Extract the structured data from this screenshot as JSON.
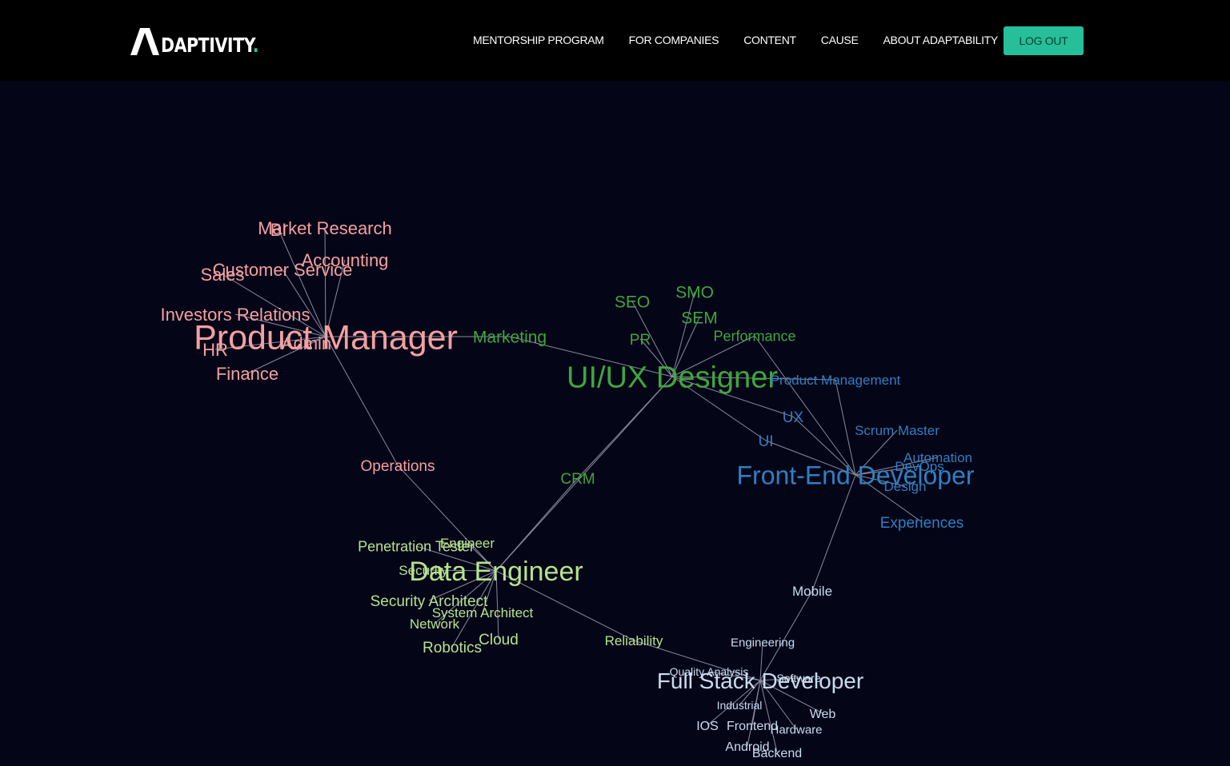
{
  "brand": {
    "logo_text": "DAPTIVITY",
    "logo_dot": "."
  },
  "nav": {
    "items": [
      "MENTORSHIP PROGRAM",
      "FOR COMPANIES",
      "CONTENT",
      "CAUSE",
      "ABOUT ADAPTABILITY"
    ],
    "logout_label": "LOG OUT"
  },
  "colors": {
    "background": "#050518",
    "header": "#000000",
    "accent": "#25bf99",
    "edge": "#8a8a9e",
    "pm": "#f4a0a0",
    "uiux": "#3fa63c",
    "frontend": "#2f7fc0",
    "data": "#b6e38c",
    "fullstack": "#c9dcef"
  },
  "graph": {
    "hubs": [
      {
        "id": "pm",
        "label": "Product Manager",
        "group": "pm"
      },
      {
        "id": "uiux",
        "label": "UI/UX Designer",
        "group": "uiux"
      },
      {
        "id": "fe",
        "label": "Front-End Developer",
        "group": "frontend"
      },
      {
        "id": "de",
        "label": "Data Engineer",
        "group": "data"
      },
      {
        "id": "fs",
        "label": "Full Stack Developer",
        "group": "fullstack"
      }
    ],
    "skills": [
      {
        "id": "market_research",
        "label": "Market Research",
        "group": "pm",
        "hubs": [
          "pm"
        ]
      },
      {
        "id": "bi",
        "label": "BI",
        "group": "pm",
        "hubs": [
          "pm"
        ]
      },
      {
        "id": "accounting",
        "label": "Accounting",
        "group": "pm",
        "hubs": [
          "pm"
        ]
      },
      {
        "id": "customer_service",
        "label": "Customer Service",
        "group": "pm",
        "hubs": [
          "pm"
        ]
      },
      {
        "id": "sales",
        "label": "Sales",
        "group": "pm",
        "hubs": [
          "pm"
        ]
      },
      {
        "id": "investors",
        "label": "Investors Relations",
        "group": "pm",
        "hubs": [
          "pm"
        ]
      },
      {
        "id": "hr",
        "label": "HR",
        "group": "pm",
        "hubs": [
          "pm"
        ]
      },
      {
        "id": "admin",
        "label": "Admin",
        "group": "pm",
        "hubs": [
          "pm"
        ]
      },
      {
        "id": "finance",
        "label": "Finance",
        "group": "pm",
        "hubs": [
          "pm"
        ]
      },
      {
        "id": "operations",
        "label": "Operations",
        "group": "pm",
        "hubs": [
          "pm",
          "de"
        ]
      },
      {
        "id": "seo",
        "label": "SEO",
        "group": "uiux",
        "hubs": [
          "uiux"
        ]
      },
      {
        "id": "smo",
        "label": "SMO",
        "group": "uiux",
        "hubs": [
          "uiux"
        ]
      },
      {
        "id": "sem",
        "label": "SEM",
        "group": "uiux",
        "hubs": [
          "uiux"
        ]
      },
      {
        "id": "pr",
        "label": "PR",
        "group": "uiux",
        "hubs": [
          "uiux"
        ]
      },
      {
        "id": "performance",
        "label": "Performance",
        "group": "uiux",
        "hubs": [
          "uiux",
          "fe"
        ]
      },
      {
        "id": "marketing",
        "label": "Marketing",
        "group": "uiux",
        "hubs": [
          "uiux",
          "pm"
        ]
      },
      {
        "id": "crm",
        "label": "CRM",
        "group": "uiux",
        "hubs": [
          "uiux",
          "de"
        ]
      },
      {
        "id": "product_mgmt",
        "label": "Product Management",
        "group": "frontend",
        "hubs": [
          "fe",
          "uiux"
        ]
      },
      {
        "id": "ux",
        "label": "UX",
        "group": "frontend",
        "hubs": [
          "fe",
          "uiux"
        ]
      },
      {
        "id": "ui",
        "label": "UI",
        "group": "frontend",
        "hubs": [
          "fe",
          "uiux"
        ]
      },
      {
        "id": "scrum",
        "label": "Scrum Master",
        "group": "frontend",
        "hubs": [
          "fe"
        ]
      },
      {
        "id": "automation",
        "label": "Automation",
        "group": "frontend",
        "hubs": [
          "fe"
        ]
      },
      {
        "id": "devops",
        "label": "DevOps",
        "group": "frontend",
        "hubs": [
          "fe"
        ]
      },
      {
        "id": "design",
        "label": "Design",
        "group": "frontend",
        "hubs": [
          "fe"
        ]
      },
      {
        "id": "experiences",
        "label": "Experiences",
        "group": "frontend",
        "hubs": [
          "fe"
        ]
      },
      {
        "id": "mobile",
        "label": "Mobile",
        "group": "fullstack",
        "hubs": [
          "fe",
          "fs"
        ]
      },
      {
        "id": "pen_tester",
        "label": "Penetration Tester",
        "group": "data",
        "hubs": [
          "de"
        ]
      },
      {
        "id": "engineer",
        "label": "Engineer",
        "group": "data",
        "hubs": [
          "de"
        ]
      },
      {
        "id": "security",
        "label": "Security",
        "group": "data",
        "hubs": [
          "de"
        ]
      },
      {
        "id": "sec_architect",
        "label": "Security Architect",
        "group": "data",
        "hubs": [
          "de"
        ]
      },
      {
        "id": "sys_architect",
        "label": "System Architect",
        "group": "data",
        "hubs": [
          "de"
        ]
      },
      {
        "id": "network",
        "label": "Network",
        "group": "data",
        "hubs": [
          "de"
        ]
      },
      {
        "id": "cloud",
        "label": "Cloud",
        "group": "data",
        "hubs": [
          "de"
        ]
      },
      {
        "id": "robotics",
        "label": "Robotics",
        "group": "data",
        "hubs": [
          "de"
        ]
      },
      {
        "id": "reliability",
        "label": "Reliability",
        "group": "data",
        "hubs": [
          "de",
          "fs"
        ]
      },
      {
        "id": "engineering",
        "label": "Engineering",
        "group": "fullstack",
        "hubs": [
          "fs"
        ]
      },
      {
        "id": "qa",
        "label": "Quality Analysis",
        "group": "fullstack",
        "hubs": [
          "fs"
        ]
      },
      {
        "id": "software",
        "label": "Software",
        "group": "fullstack",
        "hubs": [
          "fs"
        ]
      },
      {
        "id": "industrial",
        "label": "Industrial",
        "group": "fullstack",
        "hubs": [
          "fs"
        ]
      },
      {
        "id": "ios",
        "label": "IOS",
        "group": "fullstack",
        "hubs": [
          "fs"
        ]
      },
      {
        "id": "frontend_skill",
        "label": "Frontend",
        "group": "fullstack",
        "hubs": [
          "fs"
        ]
      },
      {
        "id": "web",
        "label": "Web",
        "group": "fullstack",
        "hubs": [
          "fs"
        ]
      },
      {
        "id": "hardware",
        "label": "Hardware",
        "group": "fullstack",
        "hubs": [
          "fs"
        ]
      },
      {
        "id": "android",
        "label": "Android",
        "group": "fullstack",
        "hubs": [
          "fs"
        ]
      },
      {
        "id": "backend",
        "label": "Backend",
        "group": "fullstack",
        "hubs": [
          "fs"
        ]
      }
    ]
  }
}
